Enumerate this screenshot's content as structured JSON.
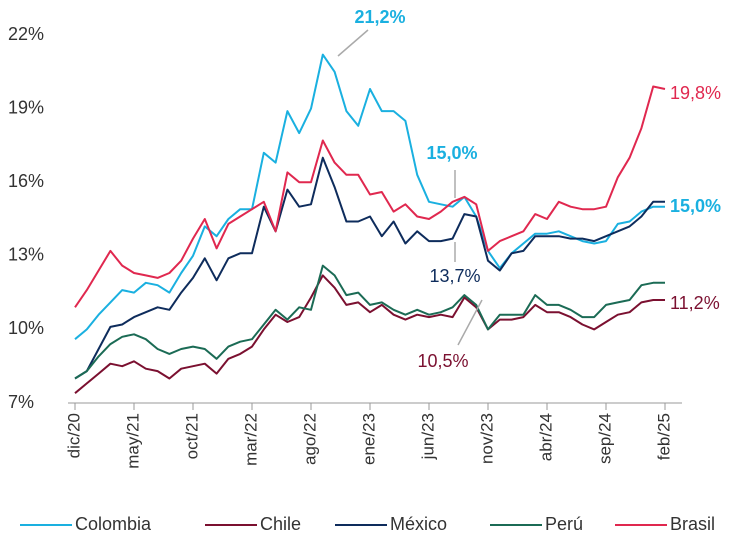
{
  "chart_data": {
    "type": "line",
    "categories": [
      "dic/20",
      null,
      null,
      null,
      null,
      "may/21",
      null,
      null,
      null,
      null,
      "oct/21",
      null,
      null,
      null,
      null,
      "mar/22",
      null,
      null,
      null,
      null,
      "ago/22",
      null,
      null,
      null,
      null,
      "ene/23",
      null,
      null,
      null,
      null,
      "jun/23",
      null,
      null,
      null,
      null,
      "nov/23",
      null,
      null,
      null,
      null,
      "abr/24",
      null,
      null,
      null,
      null,
      "sep/24",
      null,
      null,
      null,
      null,
      "feb/25"
    ],
    "ylim": [
      7,
      22
    ],
    "yticks": [
      {
        "value": 7,
        "label": "7%"
      },
      {
        "value": 10,
        "label": "10%"
      },
      {
        "value": 13,
        "label": "13%"
      },
      {
        "value": 16,
        "label": "16%"
      },
      {
        "value": 19,
        "label": "19%"
      },
      {
        "value": 22,
        "label": "22%"
      }
    ],
    "grid": false,
    "legend": "bottom",
    "series": [
      {
        "name": "Colombia",
        "color": "#1ab0e0",
        "values": [
          9.6,
          10.0,
          10.6,
          11.1,
          11.6,
          11.5,
          11.9,
          11.8,
          11.5,
          12.3,
          13.0,
          14.2,
          13.8,
          14.5,
          14.9,
          14.9,
          17.2,
          16.8,
          18.9,
          18.0,
          19.0,
          21.2,
          20.5,
          18.9,
          18.3,
          19.8,
          18.9,
          18.9,
          18.5,
          16.3,
          15.2,
          15.1,
          15.0,
          15.4,
          14.6,
          13.2,
          12.5,
          13.1,
          13.5,
          13.9,
          13.9,
          14.0,
          13.8,
          13.6,
          13.5,
          13.6,
          14.3,
          14.4,
          14.8,
          15.0,
          15.0
        ],
        "value_labels": [
          null,
          null,
          null,
          null,
          null,
          null,
          null,
          null,
          null,
          null,
          null,
          null,
          null,
          null,
          null,
          null,
          null,
          null,
          null,
          null,
          null,
          "21,2%",
          null,
          null,
          null,
          null,
          null,
          null,
          null,
          null,
          null,
          null,
          "15,0%",
          null,
          null,
          null,
          null,
          null,
          null,
          null,
          null,
          null,
          null,
          null,
          null,
          null,
          null,
          null,
          null,
          null,
          "15,0%"
        ]
      },
      {
        "name": "Chile",
        "color": "#7b1030",
        "values": [
          7.4,
          7.8,
          8.2,
          8.6,
          8.5,
          8.7,
          8.4,
          8.3,
          8.0,
          8.4,
          8.5,
          8.6,
          8.2,
          8.8,
          9.0,
          9.3,
          10.0,
          10.6,
          10.3,
          10.5,
          11.3,
          12.2,
          11.7,
          11.0,
          11.1,
          10.7,
          11.0,
          10.6,
          10.4,
          10.6,
          10.5,
          10.6,
          10.5,
          11.3,
          10.9,
          10.0,
          10.4,
          10.4,
          10.5,
          11.0,
          10.7,
          10.7,
          10.5,
          10.2,
          10.0,
          10.3,
          10.6,
          10.7,
          11.1,
          11.2,
          11.2
        ],
        "value_labels": [
          null,
          null,
          null,
          null,
          null,
          null,
          null,
          null,
          null,
          null,
          null,
          null,
          null,
          null,
          null,
          null,
          null,
          null,
          null,
          null,
          null,
          null,
          null,
          null,
          null,
          null,
          null,
          null,
          null,
          null,
          null,
          null,
          "10,5%",
          null,
          null,
          null,
          null,
          null,
          null,
          null,
          null,
          null,
          null,
          null,
          null,
          null,
          null,
          null,
          null,
          null,
          "11,2%"
        ]
      },
      {
        "name": "México",
        "color": "#0e2c5c",
        "values": [
          8.0,
          8.3,
          9.2,
          10.1,
          10.2,
          10.5,
          10.7,
          10.9,
          10.8,
          11.5,
          12.1,
          12.9,
          12.0,
          12.9,
          13.1,
          13.1,
          15.0,
          14.0,
          15.7,
          15.0,
          15.1,
          17.0,
          15.8,
          14.4,
          14.4,
          14.6,
          13.8,
          14.4,
          13.5,
          14.0,
          13.6,
          13.6,
          13.7,
          14.7,
          14.6,
          12.8,
          12.4,
          13.1,
          13.2,
          13.8,
          13.8,
          13.8,
          13.7,
          13.7,
          13.6,
          13.8,
          14.0,
          14.2,
          14.6,
          15.2,
          15.2
        ],
        "value_labels": [
          null,
          null,
          null,
          null,
          null,
          null,
          null,
          null,
          null,
          null,
          null,
          null,
          null,
          null,
          null,
          null,
          null,
          null,
          null,
          null,
          null,
          null,
          null,
          null,
          null,
          null,
          null,
          null,
          null,
          null,
          null,
          null,
          "13,7%",
          null,
          null,
          null,
          null,
          null,
          null,
          null,
          null,
          null,
          null,
          null,
          null,
          null,
          null,
          null,
          null,
          null,
          null
        ]
      },
      {
        "name": "Perú",
        "color": "#1b6b55",
        "values": [
          8.0,
          8.3,
          8.9,
          9.4,
          9.7,
          9.8,
          9.6,
          9.2,
          9.0,
          9.2,
          9.3,
          9.2,
          8.8,
          9.3,
          9.5,
          9.6,
          10.2,
          10.8,
          10.4,
          10.9,
          10.8,
          12.6,
          12.2,
          11.4,
          11.5,
          11.0,
          11.1,
          10.8,
          10.6,
          10.8,
          10.6,
          10.7,
          10.9,
          11.4,
          11.0,
          10.0,
          10.6,
          10.6,
          10.6,
          11.4,
          11.0,
          11.0,
          10.8,
          10.5,
          10.5,
          11.0,
          11.1,
          11.2,
          11.8,
          11.9,
          11.9
        ]
      },
      {
        "name": "Brasil",
        "color": "#e0284f",
        "values": [
          10.9,
          11.6,
          12.4,
          13.2,
          12.6,
          12.3,
          12.2,
          12.1,
          12.3,
          12.8,
          13.7,
          14.5,
          13.3,
          14.3,
          14.6,
          14.9,
          15.2,
          14.0,
          16.4,
          16.0,
          16.0,
          17.7,
          16.8,
          16.3,
          16.3,
          15.5,
          15.6,
          14.8,
          15.1,
          14.6,
          14.5,
          14.8,
          15.2,
          15.4,
          15.1,
          13.2,
          13.6,
          13.8,
          14.0,
          14.7,
          14.5,
          15.2,
          15.0,
          14.9,
          14.9,
          15.0,
          16.2,
          17.0,
          18.2,
          19.9,
          19.8
        ],
        "value_labels": [
          null,
          null,
          null,
          null,
          null,
          null,
          null,
          null,
          null,
          null,
          null,
          null,
          null,
          null,
          null,
          null,
          null,
          null,
          null,
          null,
          null,
          null,
          null,
          null,
          null,
          null,
          null,
          null,
          null,
          null,
          null,
          null,
          null,
          null,
          null,
          null,
          null,
          null,
          null,
          null,
          null,
          null,
          null,
          null,
          null,
          null,
          null,
          null,
          null,
          null,
          "19,8%"
        ]
      }
    ]
  }
}
